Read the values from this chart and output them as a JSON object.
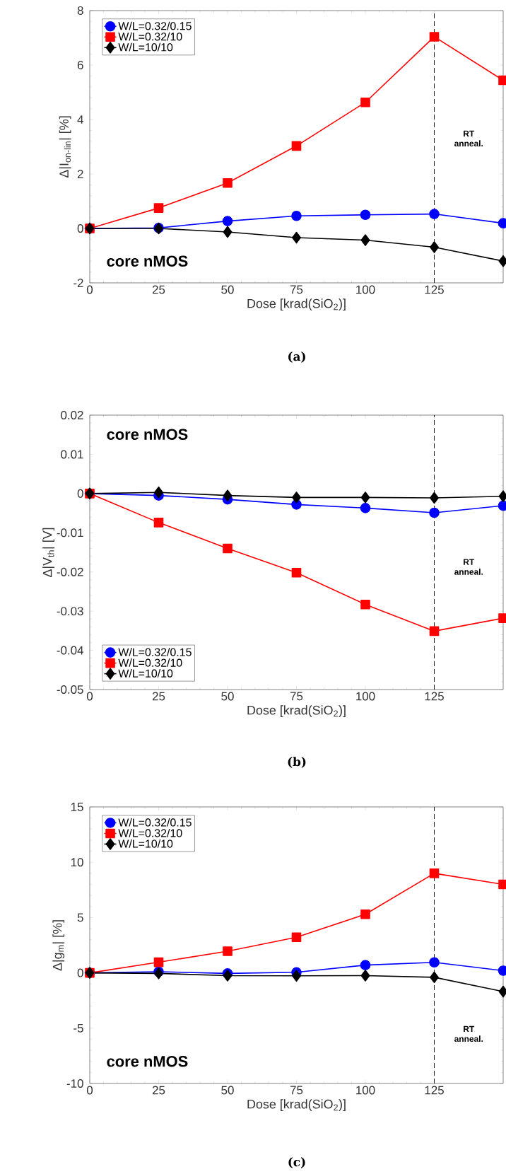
{
  "chart_data": [
    {
      "type": "line",
      "xlabel": "Dose [krad(SiO$_{2}$)]",
      "ylabel": "Δ|I$_{on-lin}$| [%]",
      "x": [
        0,
        25,
        50,
        75,
        100,
        125,
        150
      ],
      "xlim": [
        0,
        150
      ],
      "xticks": [
        0,
        25,
        50,
        75,
        100,
        125
      ],
      "ylim": [
        -2,
        8
      ],
      "yticks": [
        -2,
        0,
        2,
        4,
        6,
        8
      ],
      "legend": "top left",
      "grid": false,
      "line_style": "solid",
      "series": [
        {
          "name": "W/L=0.32/0.15",
          "color": "#0000ff",
          "marker": "circle",
          "values": [
            0,
            0.02,
            0.27,
            0.46,
            0.5,
            0.53,
            0.19
          ]
        },
        {
          "name": "W/L=0.32/10",
          "color": "#ff0000",
          "marker": "square",
          "values": [
            0,
            0.75,
            1.67,
            3.03,
            4.63,
            7.04,
            5.44
          ]
        },
        {
          "name": "W/L=10/10",
          "color": "#000000",
          "marker": "diamond",
          "values": [
            0,
            0,
            -0.13,
            -0.34,
            -0.43,
            -0.69,
            -1.2
          ]
        }
      ],
      "ref_lines": [
        {
          "axis": "x",
          "value": 125,
          "color": "#000000",
          "line_style": "dashed"
        }
      ],
      "annotations": [
        "core nMOS",
        "(a)",
        "RT anneal."
      ]
    },
    {
      "type": "line",
      "xlabel": "Dose [krad(SiO$_{2}$)]",
      "ylabel": "Δ|V$_{th}$| [V]",
      "x": [
        0,
        25,
        50,
        75,
        100,
        125,
        150
      ],
      "xlim": [
        0,
        150
      ],
      "xticks": [
        0,
        25,
        50,
        75,
        100,
        125
      ],
      "ylim": [
        -0.05,
        0.02
      ],
      "yticks": [
        -0.05,
        -0.04,
        -0.03,
        -0.02,
        -0.01,
        0,
        0.01,
        0.02
      ],
      "legend": "bottom left",
      "grid": false,
      "line_style": "solid",
      "series": [
        {
          "name": "W/L=0.32/0.15",
          "color": "#0000ff",
          "marker": "circle",
          "values": [
            0,
            -0.0005,
            -0.0015,
            -0.0028,
            -0.0037,
            -0.0049,
            -0.0031
          ]
        },
        {
          "name": "W/L=0.32/10",
          "color": "#ff0000",
          "marker": "square",
          "values": [
            0,
            -0.0074,
            -0.014,
            -0.0202,
            -0.0283,
            -0.0351,
            -0.0318
          ]
        },
        {
          "name": "W/L=10/10",
          "color": "#000000",
          "marker": "diamond",
          "values": [
            0,
            0.0003,
            -0.0005,
            -0.001,
            -0.001,
            -0.0011,
            -0.0007
          ]
        }
      ],
      "ref_lines": [
        {
          "axis": "x",
          "value": 125,
          "color": "#000000",
          "line_style": "dashed"
        }
      ],
      "annotations": [
        "core nMOS",
        "(b)",
        "RT anneal."
      ]
    },
    {
      "type": "line",
      "xlabel": "Dose [krad(SiO$_{2}$)]",
      "ylabel": "Δ|g$_{m}$| [%]",
      "x": [
        0,
        25,
        50,
        75,
        100,
        125,
        150
      ],
      "xlim": [
        0,
        150
      ],
      "xticks": [
        0,
        25,
        50,
        75,
        100,
        125
      ],
      "ylim": [
        -10,
        15
      ],
      "yticks": [
        -10,
        -5,
        0,
        5,
        10,
        15
      ],
      "legend": "top left",
      "grid": false,
      "line_style": "solid",
      "series": [
        {
          "name": "W/L=0.32/0.15",
          "color": "#0000ff",
          "marker": "circle",
          "values": [
            0,
            0.1,
            -0.05,
            0.05,
            0.7,
            0.95,
            0.2
          ]
        },
        {
          "name": "W/L=0.32/10",
          "color": "#ff0000",
          "marker": "square",
          "values": [
            0,
            0.96,
            1.96,
            3.22,
            5.3,
            9.0,
            8.0
          ]
        },
        {
          "name": "W/L=10/10",
          "color": "#000000",
          "marker": "diamond",
          "values": [
            0,
            -0.05,
            -0.25,
            -0.27,
            -0.25,
            -0.4,
            -1.69
          ]
        }
      ],
      "ref_lines": [
        {
          "axis": "x",
          "value": 125,
          "color": "#000000",
          "line_style": "dashed"
        }
      ],
      "annotations": [
        "core nMOS",
        "(c)",
        "RT anneal."
      ]
    }
  ]
}
